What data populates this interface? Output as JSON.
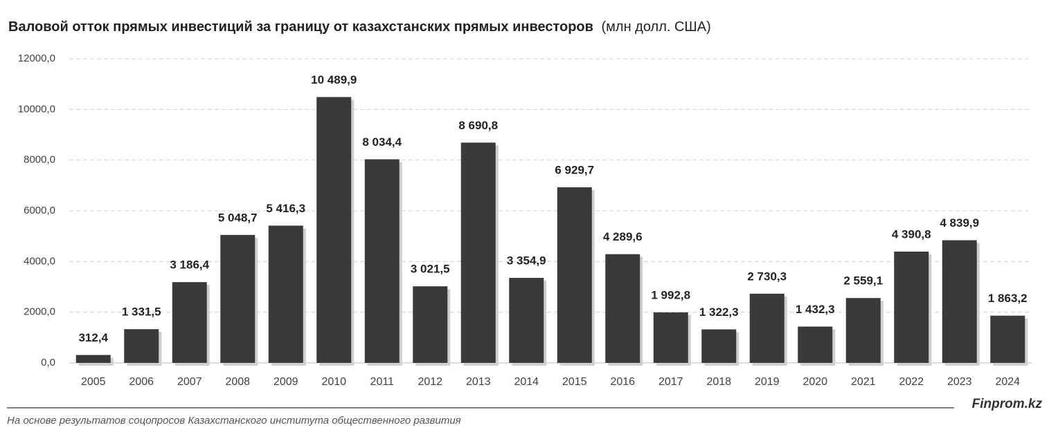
{
  "chart_data": {
    "type": "bar",
    "title": "Валовой отток прямых инвестиций за границу от казахстанских прямых инвесторов",
    "unit_label": "(млн долл. США)",
    "categories": [
      "2005",
      "2006",
      "2007",
      "2008",
      "2009",
      "2010",
      "2011",
      "2012",
      "2013",
      "2014",
      "2015",
      "2016",
      "2017",
      "2018",
      "2019",
      "2020",
      "2021",
      "2022",
      "2023",
      "2024"
    ],
    "values": [
      312.4,
      1331.5,
      3186.4,
      5048.7,
      5416.3,
      10489.9,
      8034.4,
      3021.5,
      8690.8,
      3354.9,
      6929.7,
      4289.6,
      1992.8,
      1322.3,
      2730.3,
      1432.3,
      2559.1,
      4390.8,
      4839.9,
      1863.2
    ],
    "value_labels": [
      "312,4",
      "1 331,5",
      "3 186,4",
      "5 048,7",
      "5 416,3",
      "10 489,9",
      "8 034,4",
      "3 021,5",
      "8 690,8",
      "3 354,9",
      "6 929,7",
      "4 289,6",
      "1 992,8",
      "1 322,3",
      "2 730,3",
      "1 432,3",
      "2 559,1",
      "4 390,8",
      "4 839,9",
      "1 863,2"
    ],
    "color": "#3a3a3a",
    "ylim": [
      0,
      12000
    ],
    "yticks": [
      {
        "value": 0,
        "label": "0,0"
      },
      {
        "value": 2000,
        "label": "2000,0"
      },
      {
        "value": 4000,
        "label": "4000,0"
      },
      {
        "value": 6000,
        "label": "6000,0"
      },
      {
        "value": 8000,
        "label": "8000,0"
      },
      {
        "value": 10000,
        "label": "10000,0"
      },
      {
        "value": 12000,
        "label": "12000,0"
      }
    ],
    "grid": true,
    "brand": "Finprom.kz",
    "source": "На основе результатов соцопросов Казахстанского института общественного развития"
  }
}
